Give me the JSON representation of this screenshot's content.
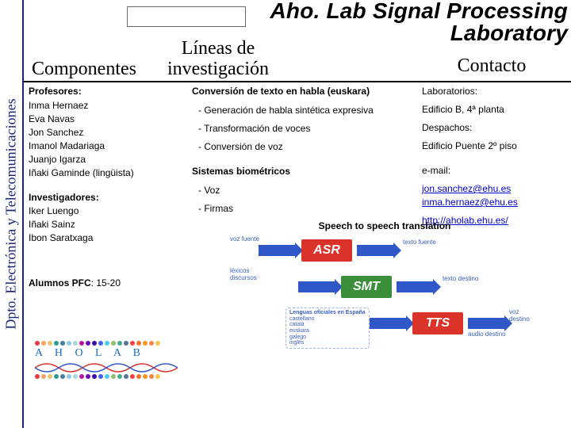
{
  "sidebar_label": "Dpto. Electrónica y Telecomunicaciones",
  "lab_title_line1": "Aho. Lab Signal Processing",
  "lab_title_line2": "Laboratory",
  "headers": {
    "componentes": "Componentes",
    "lineas": "Líneas de investigación",
    "contacto": "Contacto"
  },
  "left": {
    "profesores_label": "Profesores:",
    "profesores": [
      "Inma Hernaez",
      "Eva Navas",
      "Jon Sanchez",
      "Imanol Madariaga",
      "Juanjo Igarza",
      "Iñaki Gaminde (lingüista)"
    ],
    "investigadores_label": "Investigadores:",
    "investigadores": [
      "Iker Luengo",
      "Iñaki Sainz",
      "Ibon Saratxaga"
    ],
    "alumnos_label": "Alumnos PFC",
    "alumnos_value": ": 15-20"
  },
  "mid": {
    "l1": "Conversión de texto en habla (euskara)",
    "l1a": "- Generación de habla sintética expresiva",
    "l1b": "- Transformación de voces",
    "l1c": "- Conversión de voz",
    "l2": "Sistemas biométricos",
    "l2a": "- Voz",
    "l2b": "- Firmas"
  },
  "right": {
    "lab_label": "Laboratorios:",
    "lab_value": "Edificio B, 4ª planta",
    "desp_label": "Despachos:",
    "desp_value": "Edificio Puente 2º piso",
    "email_label": "e-mail:",
    "email1": "jon.sanchez@ehu.es",
    "email2": "inma.hernaez@ehu.es",
    "url": "http://aholab.ehu.es/"
  },
  "diagram": {
    "caption": "Speech to speech translation",
    "stages": {
      "asr": "ASR",
      "smt": "SMT",
      "tts": "TTS"
    },
    "tiny_labels": {
      "voz_fuente": "voz fuente",
      "texto_fuente": "texto fuente",
      "texto_destino": "texto destino",
      "voz_destino": "voz destino",
      "audio_destino": "audio destino",
      "langs_title": "Lenguas oficiales en España",
      "langs": [
        "castellano",
        "catalá",
        "euskara",
        "galego",
        "inglés"
      ]
    },
    "colors": {
      "red": "#d9332a",
      "green": "#3b8f3b",
      "blue_arrow": "#3057c7",
      "blue_text": "#3a5fbf"
    }
  },
  "logo": {
    "text": "A H O  L A B",
    "dot_colors": [
      "#e63946",
      "#f4a261",
      "#e9c46a",
      "#2a9d8f",
      "#457b9d",
      "#8ecae6",
      "#a8dadc",
      "#b5179e",
      "#7209b7",
      "#3a0ca3",
      "#4361ee",
      "#4cc9f0",
      "#90be6d",
      "#43aa8b",
      "#577590",
      "#f94144",
      "#f3722c",
      "#f8961e",
      "#f9844a",
      "#f9c74f"
    ],
    "wave_color_a": "#d9332a",
    "wave_color_b": "#3057c7"
  }
}
